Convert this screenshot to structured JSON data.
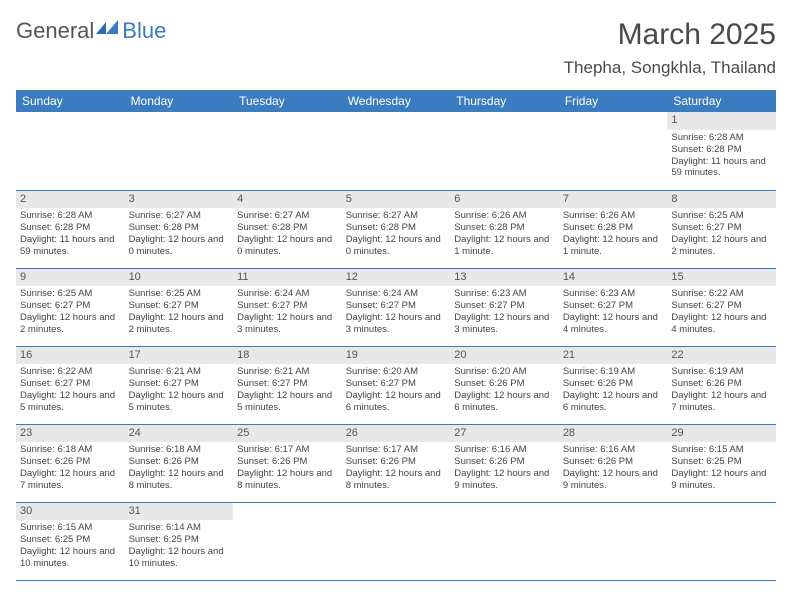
{
  "logo": {
    "part1": "General",
    "part2": "Blue"
  },
  "title": "March 2025",
  "location": "Thepha, Songkhla, Thailand",
  "colors": {
    "header_bg": "#3b7bbf",
    "header_fg": "#ffffff",
    "daynum_bg": "#e8e8e8",
    "row_divider": "#3b7bbf",
    "text": "#444444",
    "background": "#ffffff"
  },
  "weekdays": [
    "Sunday",
    "Monday",
    "Tuesday",
    "Wednesday",
    "Thursday",
    "Friday",
    "Saturday"
  ],
  "first_weekday_index": 6,
  "days": [
    {
      "n": 1,
      "sunrise": "6:28 AM",
      "sunset": "6:28 PM",
      "daylight": "11 hours and 59 minutes."
    },
    {
      "n": 2,
      "sunrise": "6:28 AM",
      "sunset": "6:28 PM",
      "daylight": "11 hours and 59 minutes."
    },
    {
      "n": 3,
      "sunrise": "6:27 AM",
      "sunset": "6:28 PM",
      "daylight": "12 hours and 0 minutes."
    },
    {
      "n": 4,
      "sunrise": "6:27 AM",
      "sunset": "6:28 PM",
      "daylight": "12 hours and 0 minutes."
    },
    {
      "n": 5,
      "sunrise": "6:27 AM",
      "sunset": "6:28 PM",
      "daylight": "12 hours and 0 minutes."
    },
    {
      "n": 6,
      "sunrise": "6:26 AM",
      "sunset": "6:28 PM",
      "daylight": "12 hours and 1 minute."
    },
    {
      "n": 7,
      "sunrise": "6:26 AM",
      "sunset": "6:28 PM",
      "daylight": "12 hours and 1 minute."
    },
    {
      "n": 8,
      "sunrise": "6:25 AM",
      "sunset": "6:27 PM",
      "daylight": "12 hours and 2 minutes."
    },
    {
      "n": 9,
      "sunrise": "6:25 AM",
      "sunset": "6:27 PM",
      "daylight": "12 hours and 2 minutes."
    },
    {
      "n": 10,
      "sunrise": "6:25 AM",
      "sunset": "6:27 PM",
      "daylight": "12 hours and 2 minutes."
    },
    {
      "n": 11,
      "sunrise": "6:24 AM",
      "sunset": "6:27 PM",
      "daylight": "12 hours and 3 minutes."
    },
    {
      "n": 12,
      "sunrise": "6:24 AM",
      "sunset": "6:27 PM",
      "daylight": "12 hours and 3 minutes."
    },
    {
      "n": 13,
      "sunrise": "6:23 AM",
      "sunset": "6:27 PM",
      "daylight": "12 hours and 3 minutes."
    },
    {
      "n": 14,
      "sunrise": "6:23 AM",
      "sunset": "6:27 PM",
      "daylight": "12 hours and 4 minutes."
    },
    {
      "n": 15,
      "sunrise": "6:22 AM",
      "sunset": "6:27 PM",
      "daylight": "12 hours and 4 minutes."
    },
    {
      "n": 16,
      "sunrise": "6:22 AM",
      "sunset": "6:27 PM",
      "daylight": "12 hours and 5 minutes."
    },
    {
      "n": 17,
      "sunrise": "6:21 AM",
      "sunset": "6:27 PM",
      "daylight": "12 hours and 5 minutes."
    },
    {
      "n": 18,
      "sunrise": "6:21 AM",
      "sunset": "6:27 PM",
      "daylight": "12 hours and 5 minutes."
    },
    {
      "n": 19,
      "sunrise": "6:20 AM",
      "sunset": "6:27 PM",
      "daylight": "12 hours and 6 minutes."
    },
    {
      "n": 20,
      "sunrise": "6:20 AM",
      "sunset": "6:26 PM",
      "daylight": "12 hours and 6 minutes."
    },
    {
      "n": 21,
      "sunrise": "6:19 AM",
      "sunset": "6:26 PM",
      "daylight": "12 hours and 6 minutes."
    },
    {
      "n": 22,
      "sunrise": "6:19 AM",
      "sunset": "6:26 PM",
      "daylight": "12 hours and 7 minutes."
    },
    {
      "n": 23,
      "sunrise": "6:18 AM",
      "sunset": "6:26 PM",
      "daylight": "12 hours and 7 minutes."
    },
    {
      "n": 24,
      "sunrise": "6:18 AM",
      "sunset": "6:26 PM",
      "daylight": "12 hours and 8 minutes."
    },
    {
      "n": 25,
      "sunrise": "6:17 AM",
      "sunset": "6:26 PM",
      "daylight": "12 hours and 8 minutes."
    },
    {
      "n": 26,
      "sunrise": "6:17 AM",
      "sunset": "6:26 PM",
      "daylight": "12 hours and 8 minutes."
    },
    {
      "n": 27,
      "sunrise": "6:16 AM",
      "sunset": "6:26 PM",
      "daylight": "12 hours and 9 minutes."
    },
    {
      "n": 28,
      "sunrise": "6:16 AM",
      "sunset": "6:26 PM",
      "daylight": "12 hours and 9 minutes."
    },
    {
      "n": 29,
      "sunrise": "6:15 AM",
      "sunset": "6:25 PM",
      "daylight": "12 hours and 9 minutes."
    },
    {
      "n": 30,
      "sunrise": "6:15 AM",
      "sunset": "6:25 PM",
      "daylight": "12 hours and 10 minutes."
    },
    {
      "n": 31,
      "sunrise": "6:14 AM",
      "sunset": "6:25 PM",
      "daylight": "12 hours and 10 minutes."
    }
  ],
  "labels": {
    "sunrise_prefix": "Sunrise: ",
    "sunset_prefix": "Sunset: ",
    "daylight_prefix": "Daylight: "
  }
}
